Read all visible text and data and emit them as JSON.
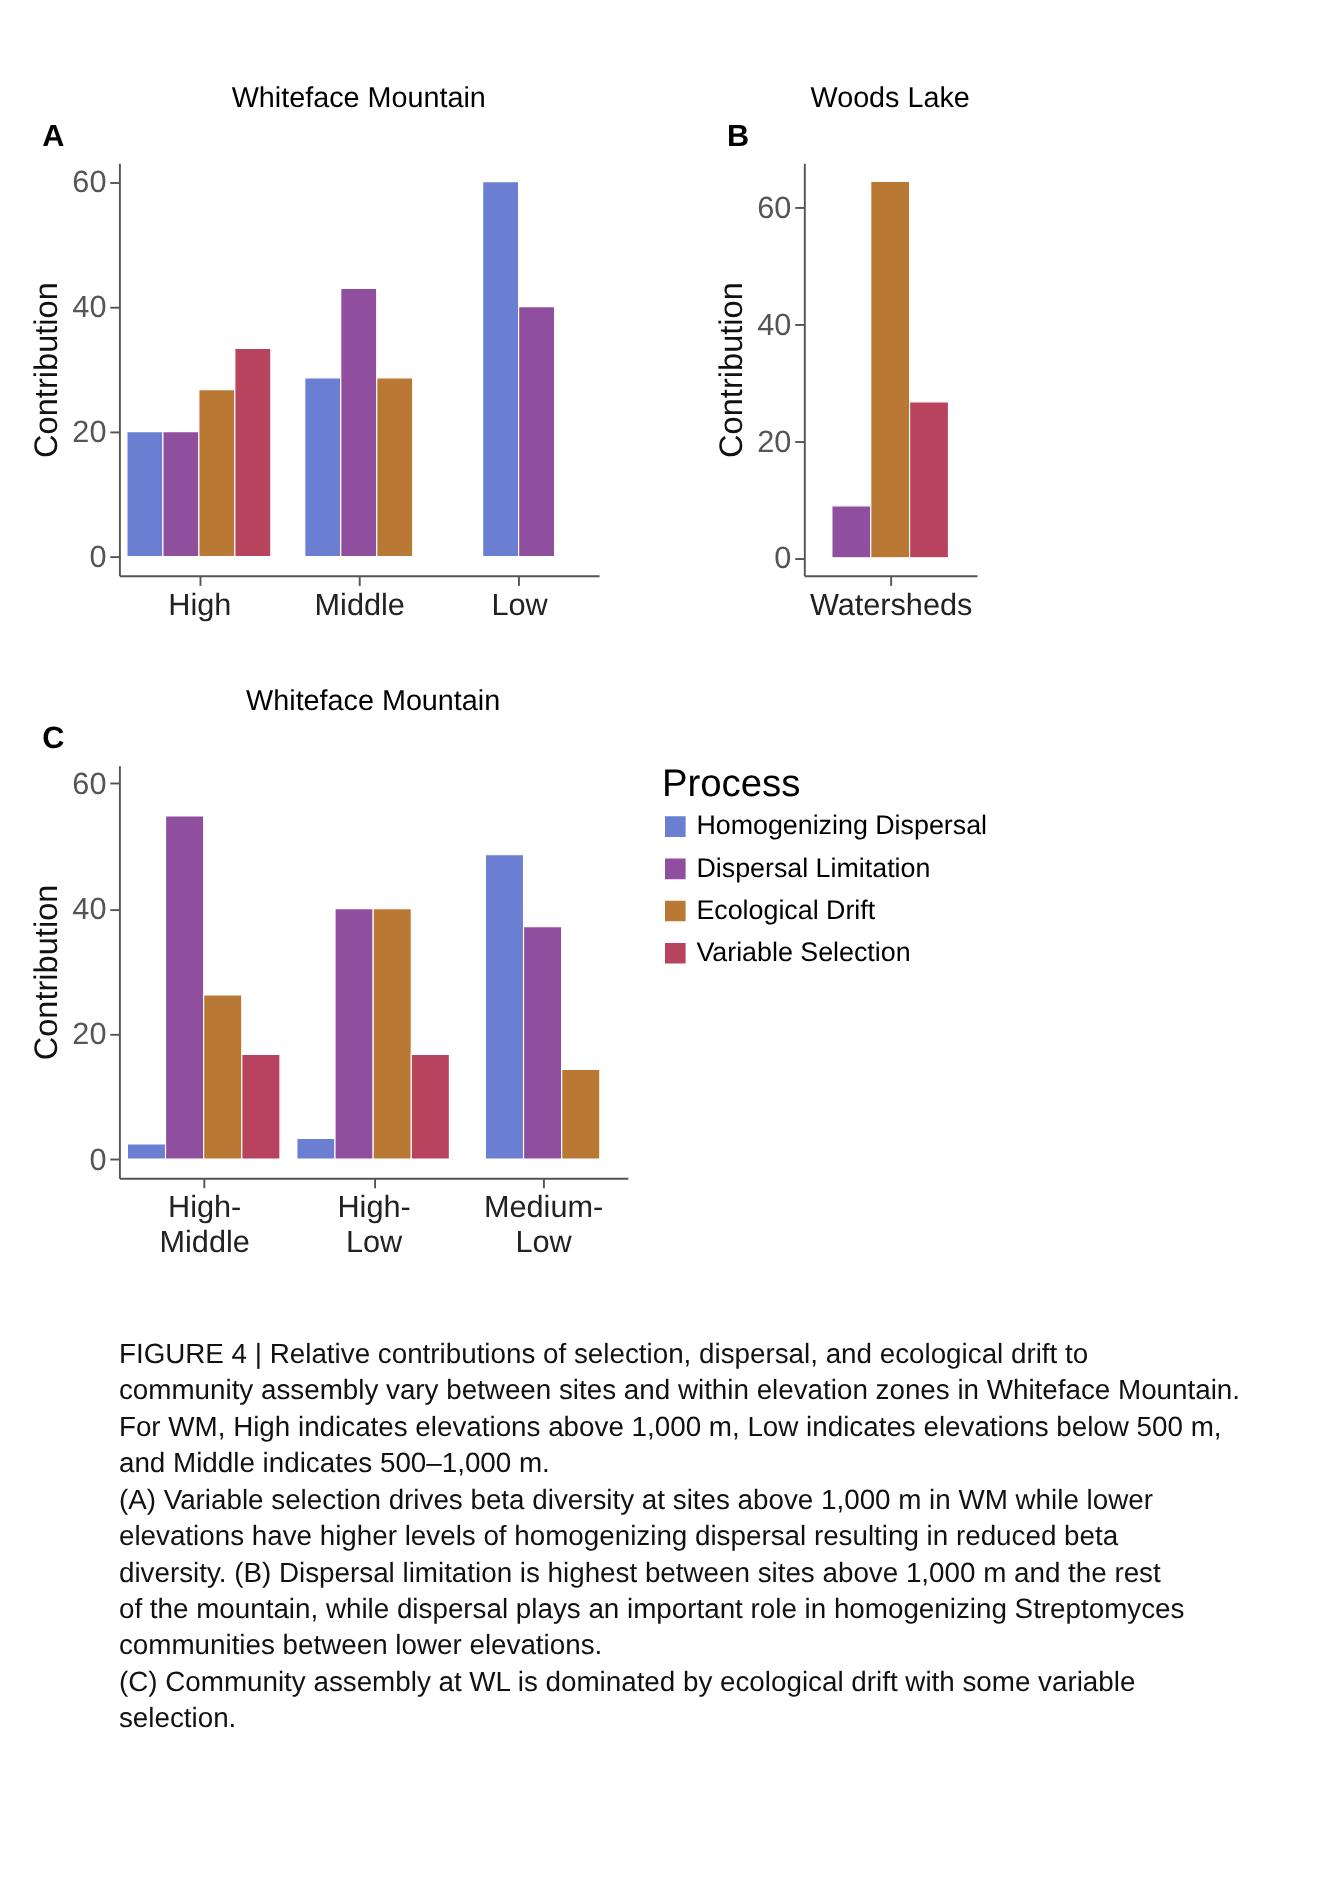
{
  "chart_data": [
    {
      "type": "bar",
      "title": "Whiteface Mountain",
      "ylabel": "Contribution",
      "annotations": [
        "A"
      ],
      "categories": [
        "High",
        "Middle",
        "Low"
      ],
      "ylim": [
        -3,
        63
      ],
      "yticks": [
        0,
        20,
        40,
        60
      ],
      "legend": false,
      "series": [
        {
          "color": "#6a7fd1",
          "values": [
            20,
            28.6,
            60
          ]
        },
        {
          "color": "#8f4f9e",
          "values": [
            20,
            42.9,
            40
          ]
        },
        {
          "color": "#b97834",
          "values": [
            26.7,
            28.6,
            null
          ]
        },
        {
          "color": "#b8435e",
          "values": [
            33.3,
            null,
            null
          ]
        }
      ]
    },
    {
      "type": "bar",
      "title": "Woods Lake",
      "ylabel": "Contribution",
      "annotations": [
        "B"
      ],
      "categories": [
        "Watersheds"
      ],
      "ylim": [
        -3,
        67.6
      ],
      "yticks": [
        0,
        20,
        40,
        60
      ],
      "legend": false,
      "series": [
        {
          "color": "#6a7fd1",
          "values": [
            null
          ]
        },
        {
          "color": "#8f4f9e",
          "values": [
            8.9
          ]
        },
        {
          "color": "#b97834",
          "values": [
            64.4
          ]
        },
        {
          "color": "#b8435e",
          "values": [
            26.7
          ]
        }
      ]
    },
    {
      "type": "bar",
      "title": "Whiteface Mountain",
      "ylabel": "Contribution",
      "annotations": [
        "C"
      ],
      "categories": [
        "High-Middle",
        "High-Low",
        "Medium-Low"
      ],
      "ylim": [
        -3,
        62.9
      ],
      "yticks": [
        0,
        20,
        40,
        60
      ],
      "legend": "right",
      "legend_title": "Process",
      "series": [
        {
          "name": "Homogenizing Dispersal",
          "color": "#6a7fd1",
          "values": [
            2.4,
            3.3,
            48.6
          ]
        },
        {
          "name": "Dispersal Limitation",
          "color": "#8f4f9e",
          "values": [
            54.8,
            40,
            37.1
          ]
        },
        {
          "name": "Ecological Drift",
          "color": "#b97834",
          "values": [
            26.2,
            40,
            14.3
          ]
        },
        {
          "name": "Variable Selection",
          "color": "#b8435e",
          "values": [
            16.7,
            16.7,
            null
          ]
        }
      ]
    },
    {
      "type": "other",
      "annotations": [
        "FIGURE 4 | Relative contributions of selection, dispersal, and ecological drift to community assembly vary between sites and within elevation zones in Whiteface Mountain. For WM, High indicates elevations above 1,000 m, Low indicates elevations below 500 m, and Middle indicates 500–1,000 m.",
        "(A) Variable selection drives beta diversity at sites above 1,000 m in WM while lower elevations have higher levels of homogenizing dispersal resulting in reduced beta diversity. (B) Dispersal limitation is highest between sites above 1,000 m and the rest of the mountain, while dispersal plays an important role in homogenizing Streptomyces communities between lower elevations.",
        "(C) Community assembly at WL is dominated by ecological drift with some variable selection."
      ]
    }
  ]
}
